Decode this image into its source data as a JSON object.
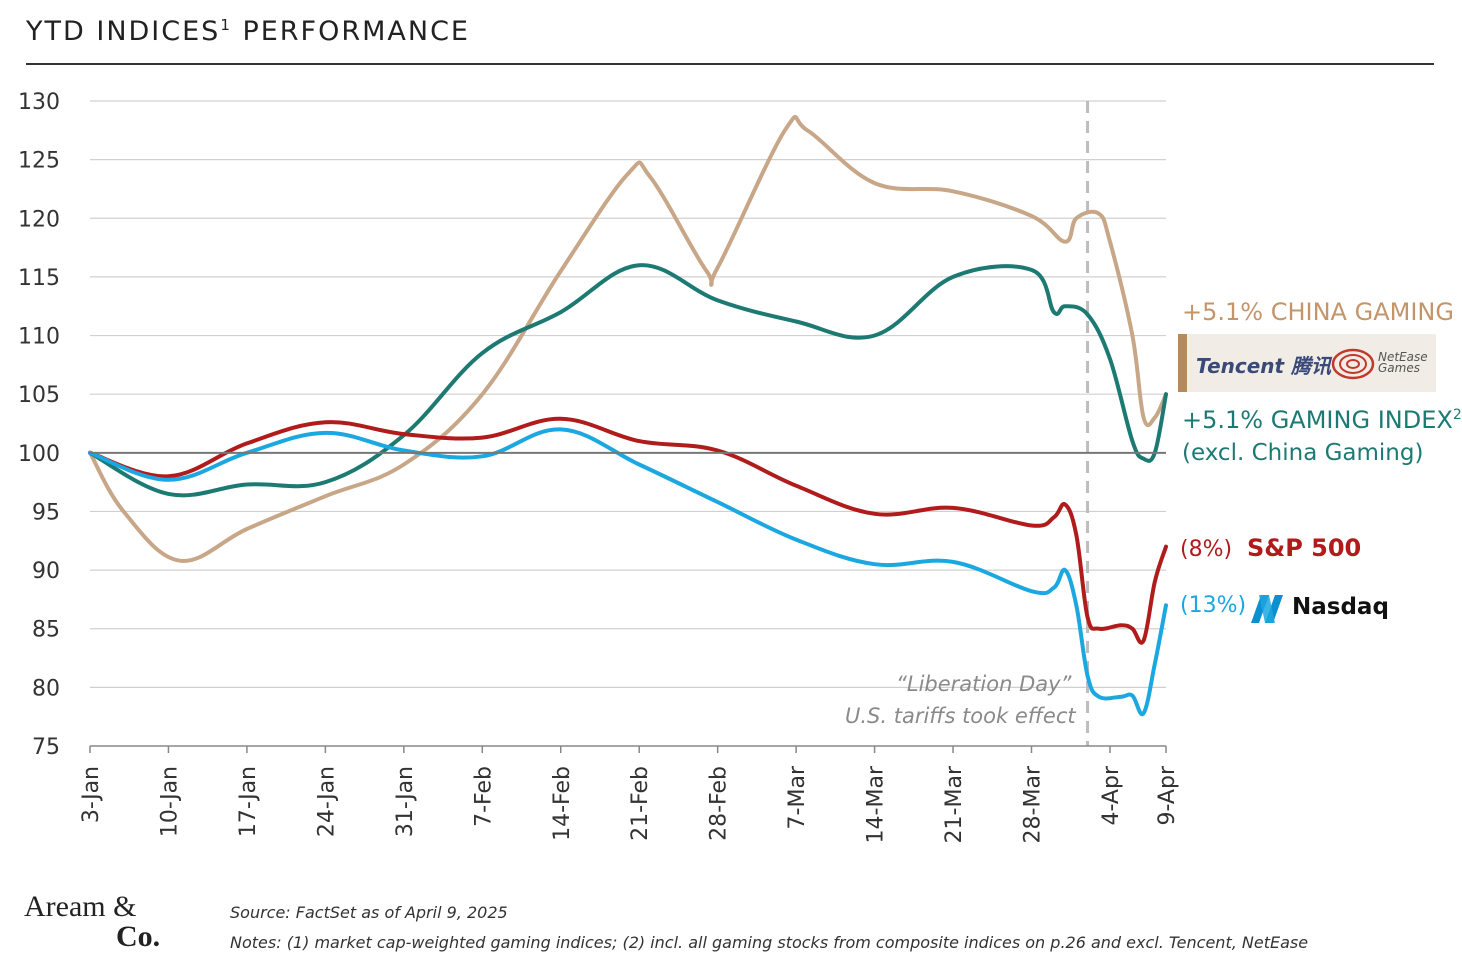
{
  "title": {
    "text": "YTD INDICES",
    "sup": "1",
    "text2": " PERFORMANCE"
  },
  "colors": {
    "china": "#c8a788",
    "gaming": "#1d7a73",
    "sp500": "#b01b1b",
    "nasdaq": "#1ba7e0",
    "grid": "#d0d0d0",
    "baseline": "#777777",
    "vline": "#bdbdbd"
  },
  "labels": {
    "china": "+5.1% CHINA GAMING",
    "gaming": "+5.1% GAMING INDEX",
    "gaming_sup": "2",
    "gaming_sub": "(excl. China Gaming)",
    "sp_pct": "(8%)",
    "sp_name": "S&P 500",
    "nq_pct": "(13%)",
    "nq_name": "Nasdaq",
    "tencent": "Tencent 腾讯",
    "netease1": "NetEase",
    "netease2": "Games",
    "annot1": "“Liberation Day”",
    "annot2": "U.S. tariffs took effect"
  },
  "footer": {
    "firm1": "Aream &",
    "firm2": "Co.",
    "source": "Source: FactSet as of April 9, 2025",
    "notes": "Notes: (1) market cap-weighted gaming indices; (2) incl. all gaming stocks from composite indices on p.26 and excl. Tencent, NetEase"
  },
  "chart_data": {
    "type": "line",
    "title": "YTD INDICES1 PERFORMANCE",
    "xlabel": "",
    "ylabel": "",
    "ylim": [
      75,
      130
    ],
    "yticks": [
      75,
      80,
      85,
      90,
      95,
      100,
      105,
      110,
      115,
      120,
      125,
      130
    ],
    "xlim": [
      0,
      96
    ],
    "xticks": [
      {
        "label": "3-Jan",
        "day": 0
      },
      {
        "label": "10-Jan",
        "day": 7
      },
      {
        "label": "17-Jan",
        "day": 14
      },
      {
        "label": "24-Jan",
        "day": 21
      },
      {
        "label": "31-Jan",
        "day": 28
      },
      {
        "label": "7-Feb",
        "day": 35
      },
      {
        "label": "14-Feb",
        "day": 42
      },
      {
        "label": "21-Feb",
        "day": 49
      },
      {
        "label": "28-Feb",
        "day": 56
      },
      {
        "label": "7-Mar",
        "day": 63
      },
      {
        "label": "14-Mar",
        "day": 70
      },
      {
        "label": "21-Mar",
        "day": 77
      },
      {
        "label": "28-Mar",
        "day": 84
      },
      {
        "label": "4-Apr",
        "day": 91
      },
      {
        "label": "9-Apr",
        "day": 96
      }
    ],
    "event_day": 89,
    "baseline": 100,
    "series": [
      {
        "name": "China Gaming",
        "key": "china",
        "points": [
          [
            0,
            100
          ],
          [
            3,
            95
          ],
          [
            8,
            90.8
          ],
          [
            14,
            93.5
          ],
          [
            21,
            96.3
          ],
          [
            28,
            99
          ],
          [
            35,
            105
          ],
          [
            42,
            115.5
          ],
          [
            48,
            123.8
          ],
          [
            50,
            123.5
          ],
          [
            55,
            115.5
          ],
          [
            56,
            115.8
          ],
          [
            62,
            127.5
          ],
          [
            64,
            127.5
          ],
          [
            70,
            123
          ],
          [
            77,
            122.3
          ],
          [
            84,
            120.2
          ],
          [
            87,
            118
          ],
          [
            88,
            120
          ],
          [
            90,
            120.4
          ],
          [
            91,
            118
          ],
          [
            93,
            110
          ],
          [
            94,
            103
          ],
          [
            95,
            103
          ],
          [
            96,
            105
          ]
        ]
      },
      {
        "name": "Gaming Index",
        "key": "gaming",
        "points": [
          [
            0,
            100
          ],
          [
            7,
            96.5
          ],
          [
            14,
            97.3
          ],
          [
            21,
            97.5
          ],
          [
            28,
            101.5
          ],
          [
            35,
            108.5
          ],
          [
            42,
            112
          ],
          [
            49,
            116
          ],
          [
            56,
            113
          ],
          [
            63,
            111.2
          ],
          [
            70,
            110
          ],
          [
            77,
            115
          ],
          [
            84,
            115.6
          ],
          [
            86,
            112
          ],
          [
            87,
            112.5
          ],
          [
            89,
            111.8
          ],
          [
            91,
            108
          ],
          [
            93,
            101
          ],
          [
            94,
            99.5
          ],
          [
            95,
            100
          ],
          [
            96,
            105
          ]
        ]
      },
      {
        "name": "S&P 500",
        "key": "sp500",
        "points": [
          [
            0,
            100
          ],
          [
            7,
            98
          ],
          [
            14,
            100.8
          ],
          [
            21,
            102.6
          ],
          [
            28,
            101.6
          ],
          [
            35,
            101.3
          ],
          [
            42,
            102.9
          ],
          [
            49,
            101
          ],
          [
            56,
            100.2
          ],
          [
            63,
            97.2
          ],
          [
            70,
            94.8
          ],
          [
            77,
            95.3
          ],
          [
            84,
            93.8
          ],
          [
            86,
            94.5
          ],
          [
            87,
            95.6
          ],
          [
            88,
            93
          ],
          [
            89,
            86
          ],
          [
            90,
            85
          ],
          [
            92,
            85.3
          ],
          [
            93,
            85
          ],
          [
            94,
            84
          ],
          [
            95,
            89
          ],
          [
            96,
            92
          ]
        ]
      },
      {
        "name": "Nasdaq",
        "key": "nasdaq",
        "points": [
          [
            0,
            100
          ],
          [
            7,
            97.7
          ],
          [
            14,
            100
          ],
          [
            21,
            101.7
          ],
          [
            28,
            100.2
          ],
          [
            35,
            99.7
          ],
          [
            42,
            102
          ],
          [
            49,
            99
          ],
          [
            56,
            95.8
          ],
          [
            63,
            92.6
          ],
          [
            70,
            90.5
          ],
          [
            77,
            90.7
          ],
          [
            84,
            88.2
          ],
          [
            86,
            88.5
          ],
          [
            87,
            90
          ],
          [
            88,
            87
          ],
          [
            89,
            81
          ],
          [
            90,
            79.2
          ],
          [
            92,
            79.2
          ],
          [
            93,
            79.3
          ],
          [
            94,
            77.8
          ],
          [
            95,
            82
          ],
          [
            96,
            87
          ]
        ]
      }
    ]
  }
}
